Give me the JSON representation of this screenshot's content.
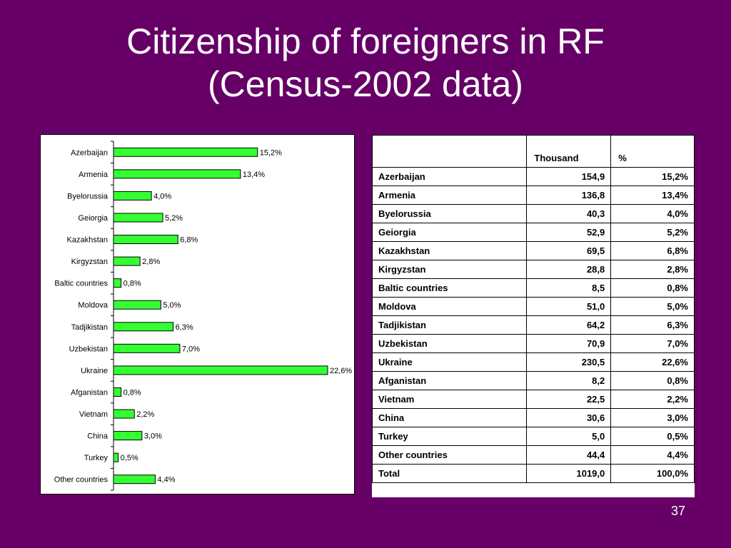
{
  "title": {
    "line1": "Citizenship of foreigners in RF",
    "line2": "(Census-2002 data)"
  },
  "page_number": "37",
  "colors": {
    "background": "#660066",
    "bar_fill": "#33ff33",
    "bar_stroke": "#000000"
  },
  "chart_data": {
    "type": "bar",
    "orientation": "horizontal",
    "categories": [
      "Azerbaijan",
      "Armenia",
      "Byelorussia",
      "Geiorgia",
      "Kazakhstan",
      "Kirgyzstan",
      "Baltic countries",
      "Moldova",
      "Tadjikistan",
      "Uzbekistan",
      "Ukraine",
      "Afganistan",
      "Vietnam",
      "China",
      "Turkey",
      "Other countries"
    ],
    "values": [
      15.2,
      13.4,
      4.0,
      5.2,
      6.8,
      2.8,
      0.8,
      5.0,
      6.3,
      7.0,
      22.6,
      0.8,
      2.2,
      3.0,
      0.5,
      4.4
    ],
    "data_labels": [
      "15,2%",
      "13,4%",
      "4,0%",
      "5,2%",
      "6,8%",
      "2,8%",
      "0,8%",
      "5,0%",
      "6,3%",
      "7,0%",
      "22,6%",
      "0,8%",
      "2,2%",
      "3,0%",
      "0,5%",
      "4,4%"
    ],
    "xlim": [
      0,
      22.6
    ],
    "grid": false,
    "legend": "none"
  },
  "table": {
    "headers": [
      "",
      "Thousand",
      "%"
    ],
    "rows": [
      [
        "Azerbaijan",
        "154,9",
        "15,2%"
      ],
      [
        "Armenia",
        "136,8",
        "13,4%"
      ],
      [
        "Byelorussia",
        "40,3",
        "4,0%"
      ],
      [
        "Geiorgia",
        "52,9",
        "5,2%"
      ],
      [
        "Kazakhstan",
        "69,5",
        "6,8%"
      ],
      [
        "Kirgyzstan",
        "28,8",
        "2,8%"
      ],
      [
        "Baltic countries",
        "8,5",
        "0,8%"
      ],
      [
        "Moldova",
        "51,0",
        "5,0%"
      ],
      [
        "Tadjikistan",
        "64,2",
        "6,3%"
      ],
      [
        "Uzbekistan",
        "70,9",
        "7,0%"
      ],
      [
        "Ukraine",
        "230,5",
        "22,6%"
      ],
      [
        "Afganistan",
        "8,2",
        "0,8%"
      ],
      [
        "Vietnam",
        "22,5",
        "2,2%"
      ],
      [
        "China",
        "30,6",
        "3,0%"
      ],
      [
        "Turkey",
        "5,0",
        "0,5%"
      ],
      [
        "Other countries",
        "44,4",
        "4,4%"
      ],
      [
        "Total",
        "1019,0",
        "100,0%"
      ]
    ]
  }
}
